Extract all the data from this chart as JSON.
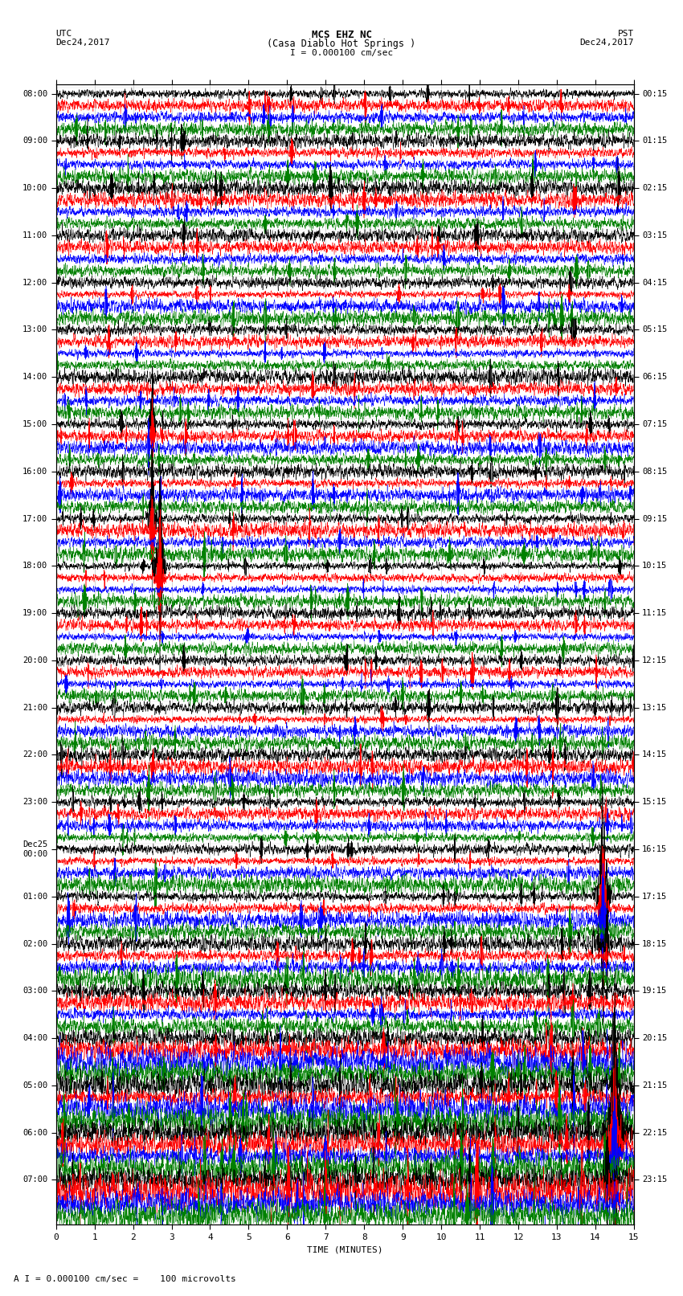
{
  "title_line1": "MCS EHZ NC",
  "title_line2": "(Casa Diablo Hot Springs )",
  "scale_label": "I = 0.000100 cm/sec",
  "footer_label": "A I = 0.000100 cm/sec =    100 microvolts",
  "utc_label": "UTC",
  "pst_label": "PST",
  "date_left": "Dec24,2017",
  "date_right": "Dec24,2017",
  "xlabel": "TIME (MINUTES)",
  "bgcolor": "#ffffff",
  "line_colors": [
    "black",
    "red",
    "blue",
    "green"
  ],
  "left_times_major": [
    "08:00",
    "09:00",
    "10:00",
    "11:00",
    "12:00",
    "13:00",
    "14:00",
    "15:00",
    "16:00",
    "17:00",
    "18:00",
    "19:00",
    "20:00",
    "21:00",
    "22:00",
    "23:00",
    "Dec25\n00:00",
    "01:00",
    "02:00",
    "03:00",
    "04:00",
    "05:00",
    "06:00",
    "07:00"
  ],
  "right_times_major": [
    "00:15",
    "01:15",
    "02:15",
    "03:15",
    "04:15",
    "05:15",
    "06:15",
    "07:15",
    "08:15",
    "09:15",
    "10:15",
    "11:15",
    "12:15",
    "13:15",
    "14:15",
    "15:15",
    "16:15",
    "17:15",
    "18:15",
    "19:15",
    "20:15",
    "21:15",
    "22:15",
    "23:15"
  ],
  "n_rows": 96,
  "minutes": 15,
  "noise_base": 0.35,
  "seed": 1234
}
